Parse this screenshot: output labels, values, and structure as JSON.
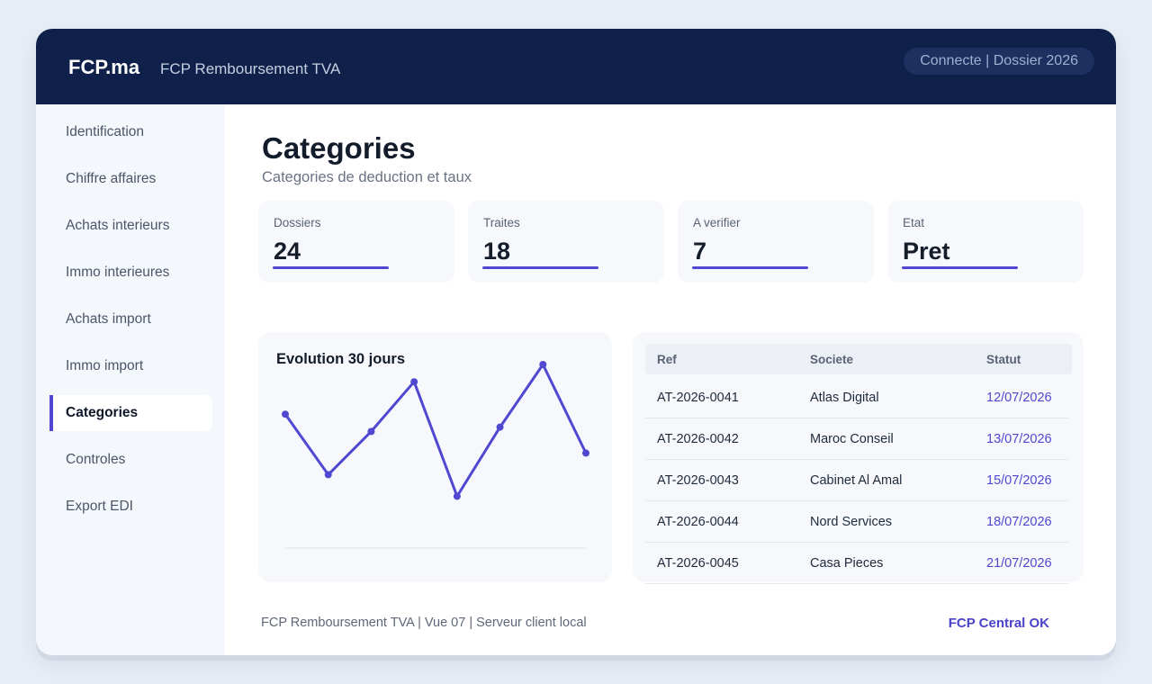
{
  "header": {
    "brand": "FCP.ma",
    "app_name": "FCP Remboursement TVA",
    "session": "Connecte | Dossier 2026"
  },
  "sidebar": {
    "items": [
      {
        "label": "Identification",
        "active": false
      },
      {
        "label": "Chiffre affaires",
        "active": false
      },
      {
        "label": "Achats interieurs",
        "active": false
      },
      {
        "label": "Immo interieures",
        "active": false
      },
      {
        "label": "Achats import",
        "active": false
      },
      {
        "label": "Immo import",
        "active": false
      },
      {
        "label": "Categories",
        "active": true
      },
      {
        "label": "Controles",
        "active": false
      },
      {
        "label": "Export EDI",
        "active": false
      }
    ]
  },
  "main": {
    "title": "Categories",
    "subtitle": "Categories de deduction et taux",
    "kpis": [
      {
        "label": "Dossiers",
        "value": "24"
      },
      {
        "label": "Traites",
        "value": "18"
      },
      {
        "label": "A verifier",
        "value": "7"
      },
      {
        "label": "Etat",
        "value": "Pret"
      }
    ],
    "chart": {
      "title": "Evolution 30 jours"
    },
    "table": {
      "headers": [
        "Ref",
        "Societe",
        "Statut"
      ],
      "rows": [
        [
          "AT-2026-0041",
          "Atlas Digital",
          "12/07/2026"
        ],
        [
          "AT-2026-0042",
          "Maroc Conseil",
          "13/07/2026"
        ],
        [
          "AT-2026-0043",
          "Cabinet Al Amal",
          "15/07/2026"
        ],
        [
          "AT-2026-0044",
          "Nord Services",
          "18/07/2026"
        ],
        [
          "AT-2026-0045",
          "Casa Pieces",
          "21/07/2026"
        ]
      ]
    }
  },
  "footer": {
    "info": "FCP Remboursement TVA | Vue 07 | Serveur client local",
    "status": "FCP Central OK"
  },
  "colors": {
    "header_bg": "#0f214a",
    "accent": "#5048d0",
    "page_bg": "#e7edf4",
    "card_bg": "#f6f8fc"
  },
  "icons": [],
  "chart_data": {
    "type": "line",
    "title": "Evolution 30 jours",
    "x": [
      1,
      2,
      3,
      4,
      5,
      6,
      7,
      8
    ],
    "series": [
      {
        "values": [
          62,
          34,
          54,
          77,
          24,
          56,
          85,
          44
        ]
      }
    ],
    "ylim": [
      0,
      100
    ],
    "xlabel": "",
    "ylabel": "",
    "grid": false,
    "axis_labels_shown": false
  }
}
